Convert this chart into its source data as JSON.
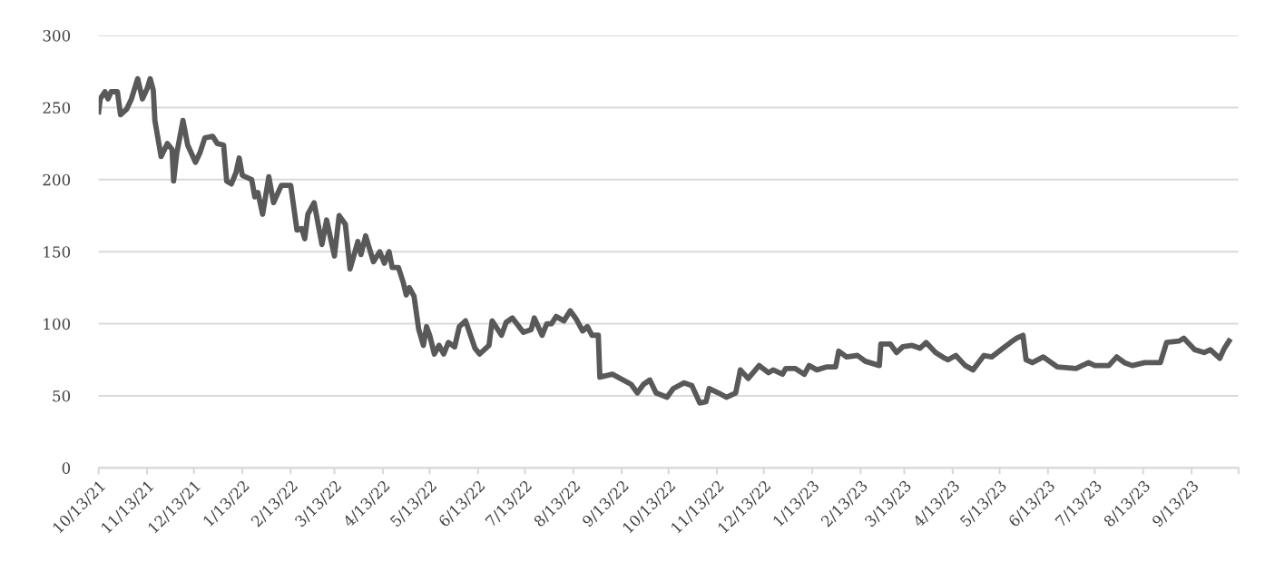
{
  "chart_data": {
    "type": "line",
    "line_style": "solid",
    "marker": "none",
    "grid": "y",
    "legend": false,
    "xlim": [
      "2021-10-13",
      "2023-10-13"
    ],
    "xticks": [
      {
        "value": "2021-10-13",
        "label": "10/13/21"
      },
      {
        "value": "2021-11-13",
        "label": "11/13/21"
      },
      {
        "value": "2021-12-13",
        "label": "12/13/21"
      },
      {
        "value": "2022-01-13",
        "label": "1/13/22"
      },
      {
        "value": "2022-02-13",
        "label": "2/13/22"
      },
      {
        "value": "2022-03-13",
        "label": "3/13/22"
      },
      {
        "value": "2022-04-13",
        "label": "4/13/22"
      },
      {
        "value": "2022-05-13",
        "label": "5/13/22"
      },
      {
        "value": "2022-06-13",
        "label": "6/13/22"
      },
      {
        "value": "2022-07-13",
        "label": "7/13/22"
      },
      {
        "value": "2022-08-13",
        "label": "8/13/22"
      },
      {
        "value": "2022-09-13",
        "label": "9/13/22"
      },
      {
        "value": "2022-10-13",
        "label": "10/13/22"
      },
      {
        "value": "2022-11-13",
        "label": "11/13/22"
      },
      {
        "value": "2022-12-13",
        "label": "12/13/22"
      },
      {
        "value": "2023-01-13",
        "label": "1/13/23"
      },
      {
        "value": "2023-02-13",
        "label": "2/13/23"
      },
      {
        "value": "2023-03-13",
        "label": "3/13/23"
      },
      {
        "value": "2023-04-13",
        "label": "4/13/23"
      },
      {
        "value": "2023-05-13",
        "label": "5/13/23"
      },
      {
        "value": "2023-06-13",
        "label": "6/13/23"
      },
      {
        "value": "2023-07-13",
        "label": "7/13/23"
      },
      {
        "value": "2023-08-13",
        "label": "8/13/23"
      },
      {
        "value": "2023-09-13",
        "label": "9/13/23"
      },
      {
        "value": "2023-10-13",
        "label": null
      }
    ],
    "ylim": [
      0,
      300
    ],
    "yticks": [
      0,
      50,
      100,
      150,
      200,
      250,
      300
    ],
    "series": [
      {
        "color": "#595959",
        "x": [
          "2021-10-13",
          "2021-10-14",
          "2021-10-17",
          "2021-10-19",
          "2021-10-21",
          "2021-10-25",
          "2021-10-27",
          "2021-10-31",
          "2021-11-03",
          "2021-11-07",
          "2021-11-10",
          "2021-11-13",
          "2021-11-15",
          "2021-11-17",
          "2021-11-18",
          "2021-11-22",
          "2021-11-26",
          "2021-11-29",
          "2021-11-30",
          "2021-12-02",
          "2021-12-06",
          "2021-12-09",
          "2021-12-14",
          "2021-12-17",
          "2021-12-20",
          "2021-12-25",
          "2021-12-28",
          "2022-01-01",
          "2022-01-03",
          "2022-01-06",
          "2022-01-09",
          "2022-01-11",
          "2022-01-13",
          "2022-01-19",
          "2022-01-21",
          "2022-01-23",
          "2022-01-26",
          "2022-01-30",
          "2022-02-02",
          "2022-02-07",
          "2022-02-13",
          "2022-02-17",
          "2022-02-20",
          "2022-02-22",
          "2022-02-24",
          "2022-02-28",
          "2022-03-05",
          "2022-03-08",
          "2022-03-13",
          "2022-03-16",
          "2022-03-20",
          "2022-03-23",
          "2022-03-28",
          "2022-03-30",
          "2022-04-02",
          "2022-04-07",
          "2022-04-11",
          "2022-04-14",
          "2022-04-17",
          "2022-04-19",
          "2022-04-23",
          "2022-04-26",
          "2022-04-28",
          "2022-04-30",
          "2022-05-03",
          "2022-05-06",
          "2022-05-09",
          "2022-05-11",
          "2022-05-13",
          "2022-05-16",
          "2022-05-19",
          "2022-05-22",
          "2022-05-25",
          "2022-05-29",
          "2022-06-01",
          "2022-06-05",
          "2022-06-11",
          "2022-06-14",
          "2022-06-20",
          "2022-06-22",
          "2022-06-28",
          "2022-07-01",
          "2022-07-05",
          "2022-07-12",
          "2022-07-17",
          "2022-07-19",
          "2022-07-24",
          "2022-07-27",
          "2022-07-30",
          "2022-08-02",
          "2022-08-07",
          "2022-08-11",
          "2022-08-15",
          "2022-08-19",
          "2022-08-22",
          "2022-08-25",
          "2022-08-29",
          "2022-08-30",
          "2022-09-07",
          "2022-09-19",
          "2022-09-23",
          "2022-09-27",
          "2022-10-01",
          "2022-10-05",
          "2022-10-12",
          "2022-10-16",
          "2022-10-23",
          "2022-10-28",
          "2022-11-02",
          "2022-11-06",
          "2022-11-08",
          "2022-11-14",
          "2022-11-19",
          "2022-11-25",
          "2022-11-28",
          "2022-12-03",
          "2022-12-10",
          "2022-12-16",
          "2022-12-19",
          "2022-12-25",
          "2022-12-27",
          "2023-01-02",
          "2023-01-08",
          "2023-01-11",
          "2023-01-16",
          "2023-01-22",
          "2023-01-28",
          "2023-01-30",
          "2023-02-04",
          "2023-02-11",
          "2023-02-16",
          "2023-02-25",
          "2023-02-26",
          "2023-03-04",
          "2023-03-08",
          "2023-03-12",
          "2023-03-18",
          "2023-03-23",
          "2023-03-27",
          "2023-04-02",
          "2023-04-08",
          "2023-04-10",
          "2023-04-15",
          "2023-04-21",
          "2023-04-26",
          "2023-05-03",
          "2023-05-08",
          "2023-05-14",
          "2023-05-20",
          "2023-05-24",
          "2023-05-28",
          "2023-05-30",
          "2023-06-03",
          "2023-06-10",
          "2023-06-19",
          "2023-07-01",
          "2023-07-09",
          "2023-07-13",
          "2023-07-22",
          "2023-07-27",
          "2023-08-01",
          "2023-08-06",
          "2023-08-14",
          "2023-08-24",
          "2023-08-28",
          "2023-09-05",
          "2023-09-08",
          "2023-09-15",
          "2023-09-21",
          "2023-09-25",
          "2023-10-01",
          "2023-10-04",
          "2023-10-07"
        ],
        "values": [
          247,
          256,
          261,
          256,
          261,
          261,
          245,
          249,
          256,
          270,
          256,
          263,
          270,
          262,
          241,
          216,
          225,
          221,
          199,
          218,
          241,
          224,
          212,
          219,
          229,
          230,
          225,
          224,
          199,
          197,
          205,
          215,
          203,
          200,
          188,
          191,
          176,
          202,
          184,
          196,
          196,
          165,
          166,
          159,
          176,
          184,
          155,
          172,
          147,
          175,
          169,
          138,
          157,
          148,
          161,
          143,
          150,
          142,
          150,
          139,
          139,
          129,
          120,
          125,
          119,
          96,
          85,
          98,
          92,
          79,
          85,
          79,
          87,
          84,
          98,
          102,
          83,
          79,
          85,
          102,
          92,
          101,
          104,
          94,
          96,
          104,
          92,
          100,
          100,
          105,
          102,
          109,
          103,
          95,
          98,
          92,
          92,
          63,
          65,
          58,
          52,
          58,
          61,
          52,
          49,
          55,
          59,
          57,
          45,
          46,
          55,
          52,
          49,
          52,
          68,
          62,
          71,
          66,
          68,
          65,
          69,
          69,
          65,
          71,
          68,
          70,
          70,
          81,
          77,
          78,
          74,
          71,
          86,
          86,
          80,
          84,
          85,
          83,
          87,
          80,
          76,
          75,
          78,
          71,
          68,
          78,
          77,
          82,
          87,
          90,
          92,
          75,
          73,
          77,
          70,
          69,
          73,
          71,
          71,
          77,
          73,
          71,
          73,
          73,
          87,
          88,
          90,
          82,
          80,
          82,
          76,
          83,
          88
        ]
      }
    ]
  }
}
